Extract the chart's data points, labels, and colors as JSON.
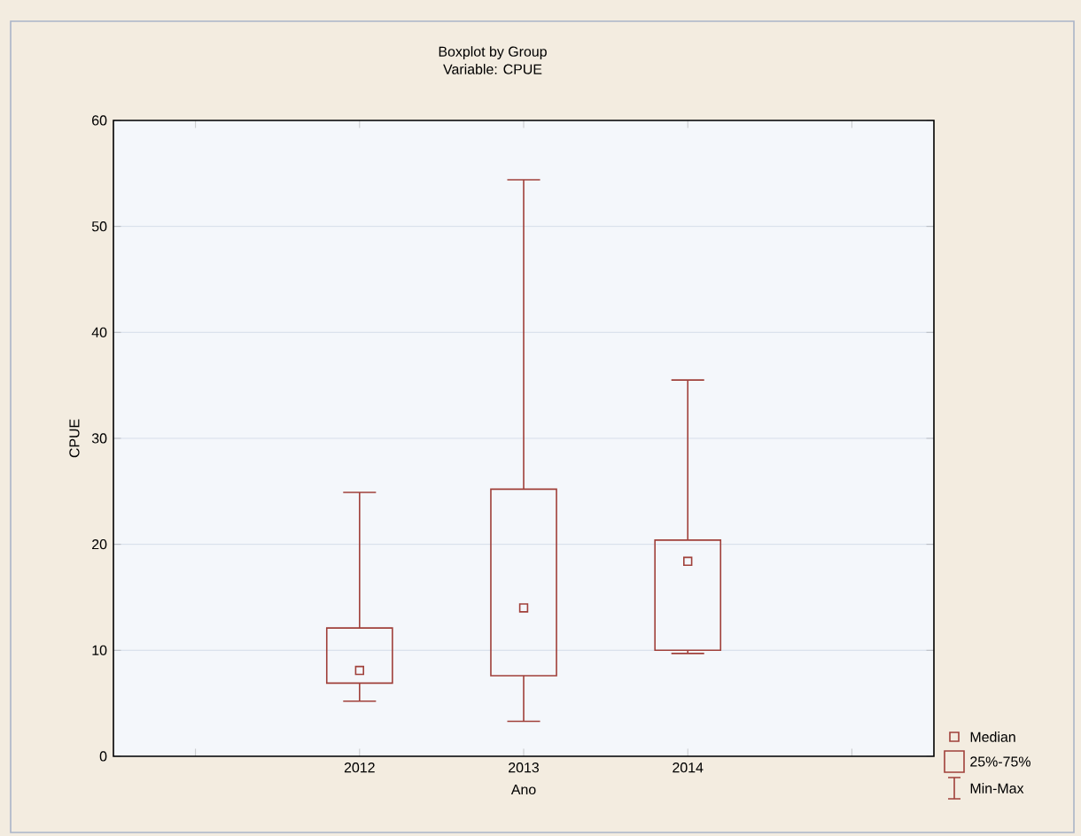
{
  "chart_data": {
    "type": "box",
    "title": "Boxplot by Group",
    "subtitle": "Variable: CPUE",
    "xlabel": "Ano",
    "ylabel": "CPUE",
    "categories": [
      null,
      "2012",
      "2013",
      "2014",
      null
    ],
    "boxes": [
      null,
      {
        "low": 5.2,
        "q1": 6.9,
        "median": 8.1,
        "q3": 12.1,
        "high": 24.9
      },
      {
        "low": 3.3,
        "q1": 7.6,
        "median": 14.0,
        "q3": 25.2,
        "high": 54.4
      },
      {
        "low": 9.7,
        "q1": 10.0,
        "median": 18.4,
        "q3": 20.4,
        "high": 35.5
      },
      null
    ],
    "color": "#a0403a",
    "ylim": [
      0,
      60
    ],
    "yticks": [
      0,
      10,
      20,
      30,
      40,
      50,
      60
    ],
    "grid": "y",
    "annotations": [
      "Median",
      "25%-75%",
      "Min-Max"
    ]
  }
}
